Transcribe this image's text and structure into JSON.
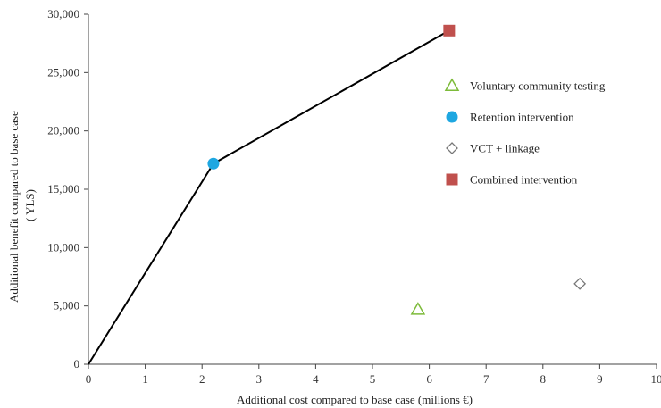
{
  "chart_data": {
    "type": "scatter",
    "xlabel": "Additional cost compared to base case (millions €)",
    "ylabel_lines": [
      "Additional benefit compared to base case",
      "( YLS)"
    ],
    "xlim": [
      0,
      10
    ],
    "ylim": [
      0,
      30000
    ],
    "x_ticks": [
      0,
      1,
      2,
      3,
      4,
      5,
      6,
      7,
      8,
      9,
      10
    ],
    "x_tick_labels": [
      "0",
      "1",
      "2",
      "3",
      "4",
      "5",
      "6",
      "7",
      "8",
      "9",
      "10"
    ],
    "y_ticks": [
      0,
      5000,
      10000,
      15000,
      20000,
      25000,
      30000
    ],
    "y_tick_labels": [
      "0",
      "5,000",
      "10,000",
      "15,000",
      "20,000",
      "25,000",
      "30,000"
    ],
    "grid": false,
    "legend_position": "right",
    "series": [
      {
        "name": "Voluntary community testing",
        "marker": "triangle-open",
        "color": "#7dbb3a",
        "points": [
          {
            "x": 5.8,
            "y": 4700
          }
        ]
      },
      {
        "name": "Retention intervention",
        "marker": "circle-filled",
        "color": "#1ea7e1",
        "points": [
          {
            "x": 2.2,
            "y": 17200
          }
        ]
      },
      {
        "name": "VCT + linkage",
        "marker": "diamond-open",
        "color": "#777777",
        "points": [
          {
            "x": 8.65,
            "y": 6900
          }
        ]
      },
      {
        "name": "Combined intervention",
        "marker": "square-filled",
        "color": "#c0504d",
        "points": [
          {
            "x": 6.35,
            "y": 28600
          }
        ]
      }
    ],
    "frontier_line": {
      "color": "#000000",
      "points": [
        {
          "x": 0,
          "y": 0
        },
        {
          "x": 2.2,
          "y": 17200
        },
        {
          "x": 6.35,
          "y": 28600
        }
      ]
    }
  }
}
